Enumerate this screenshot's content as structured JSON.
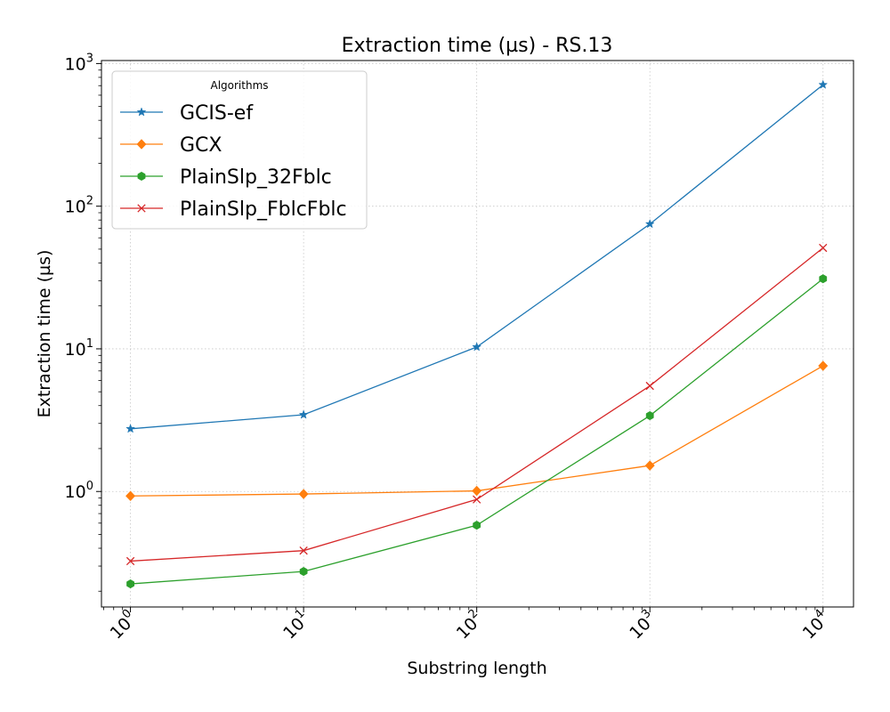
{
  "chart_data": {
    "type": "line",
    "title": "Extraction time (µs) - RS.13",
    "xlabel": "Substring length",
    "ylabel": "Extraction time (µs)",
    "xscale": "log",
    "yscale": "log",
    "xlim": [
      0.68,
      15000
    ],
    "ylim": [
      0.155,
      1050
    ],
    "x": [
      1,
      10,
      100,
      1000,
      10000
    ],
    "xticks": [
      {
        "base": "10",
        "exp": "0"
      },
      {
        "base": "10",
        "exp": "1"
      },
      {
        "base": "10",
        "exp": "2"
      },
      {
        "base": "10",
        "exp": "3"
      },
      {
        "base": "10",
        "exp": "4"
      }
    ],
    "yticks": [
      {
        "base": "10",
        "exp": "0"
      },
      {
        "base": "10",
        "exp": "1"
      },
      {
        "base": "10",
        "exp": "2"
      },
      {
        "base": "10",
        "exp": "3"
      }
    ],
    "grid": true,
    "legend": {
      "title": "Algorithms",
      "position": "top-left"
    },
    "series": [
      {
        "name": "GCIS-ef",
        "color": "#1f77b4",
        "marker": "star",
        "values": [
          2.75,
          3.45,
          10.3,
          75,
          710
        ]
      },
      {
        "name": "GCX",
        "color": "#ff7f0e",
        "marker": "diamond",
        "values": [
          0.93,
          0.96,
          1.01,
          1.52,
          7.6
        ]
      },
      {
        "name": "PlainSlp_32Fblc",
        "color": "#2ca02c",
        "marker": "hexagon",
        "values": [
          0.225,
          0.275,
          0.58,
          3.4,
          31
        ]
      },
      {
        "name": "PlainSlp_FblcFblc",
        "color": "#d62728",
        "marker": "x",
        "values": [
          0.325,
          0.385,
          0.88,
          5.5,
          51
        ]
      }
    ]
  }
}
